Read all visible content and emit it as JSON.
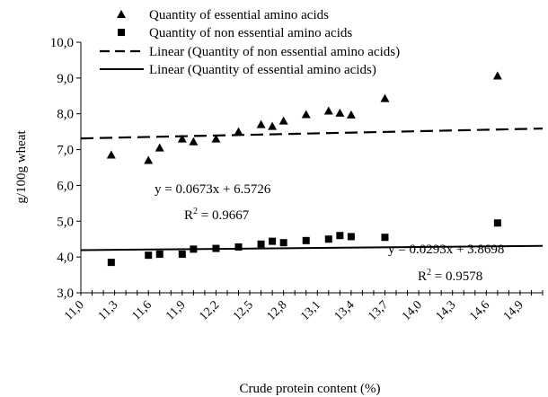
{
  "chart_data": {
    "type": "scatter",
    "xlabel": "Crude protein content (%)",
    "ylabel": "g/100g wheat",
    "xlim": [
      11.0,
      15.1
    ],
    "ylim": [
      3.0,
      10.0
    ],
    "x_ticks": [
      "11,0",
      "11,3",
      "11,6",
      "11,9",
      "12,2",
      "12,5",
      "12,8",
      "13,1",
      "13,4",
      "13,7",
      "14,0",
      "14,3",
      "14,6",
      "14,9"
    ],
    "y_ticks": [
      "3,0",
      "4,0",
      "5,0",
      "6,0",
      "7,0",
      "8,0",
      "9,0",
      "10,0"
    ],
    "grid": false,
    "legend_position": "top",
    "series": [
      {
        "name": "Quantity of essential amino acids",
        "marker": "triangle",
        "x": [
          11.27,
          11.6,
          11.7,
          11.9,
          12.0,
          12.2,
          12.4,
          12.6,
          12.7,
          12.8,
          13.0,
          13.2,
          13.3,
          13.4,
          13.7,
          14.7
        ],
        "y": [
          6.85,
          6.7,
          7.05,
          7.3,
          7.22,
          7.3,
          7.5,
          7.7,
          7.65,
          7.8,
          7.98,
          8.08,
          8.02,
          7.97,
          8.43,
          9.06
        ]
      },
      {
        "name": "Quantity of non essential amino acids",
        "marker": "square",
        "x": [
          11.27,
          11.6,
          11.7,
          11.9,
          12.0,
          12.2,
          12.4,
          12.6,
          12.7,
          12.8,
          13.0,
          13.2,
          13.3,
          13.4,
          13.7,
          14.7
        ],
        "y": [
          3.85,
          4.05,
          4.08,
          4.08,
          4.22,
          4.24,
          4.28,
          4.36,
          4.44,
          4.4,
          4.46,
          4.5,
          4.6,
          4.57,
          4.55,
          4.95
        ]
      }
    ],
    "trendlines": [
      {
        "name": "Linear (Quantity of non essential amino acids)",
        "style": "dashed",
        "slope": 0.0673,
        "intercept": 6.5726,
        "x_range": [
          11.0,
          15.1
        ],
        "equation": "y = 0.0673x + 6.5726",
        "r2_label": "R",
        "r2_exp": "2",
        "r2_value": " = 0.9667"
      },
      {
        "name": "Linear (Quantity of essential amino acids)",
        "style": "solid",
        "slope": 0.0293,
        "intercept": 3.8698,
        "x_range": [
          11.0,
          15.1
        ],
        "equation": "y = 0.0293x + 3.8698",
        "r2_label": "R",
        "r2_exp": "2",
        "r2_value": " = 0.9578"
      }
    ]
  },
  "legend": {
    "items": [
      "Quantity of essential amino acids",
      "Quantity of non essential amino acids",
      "Linear (Quantity of non essential amino acids)",
      "Linear (Quantity of essential amino acids)"
    ]
  }
}
